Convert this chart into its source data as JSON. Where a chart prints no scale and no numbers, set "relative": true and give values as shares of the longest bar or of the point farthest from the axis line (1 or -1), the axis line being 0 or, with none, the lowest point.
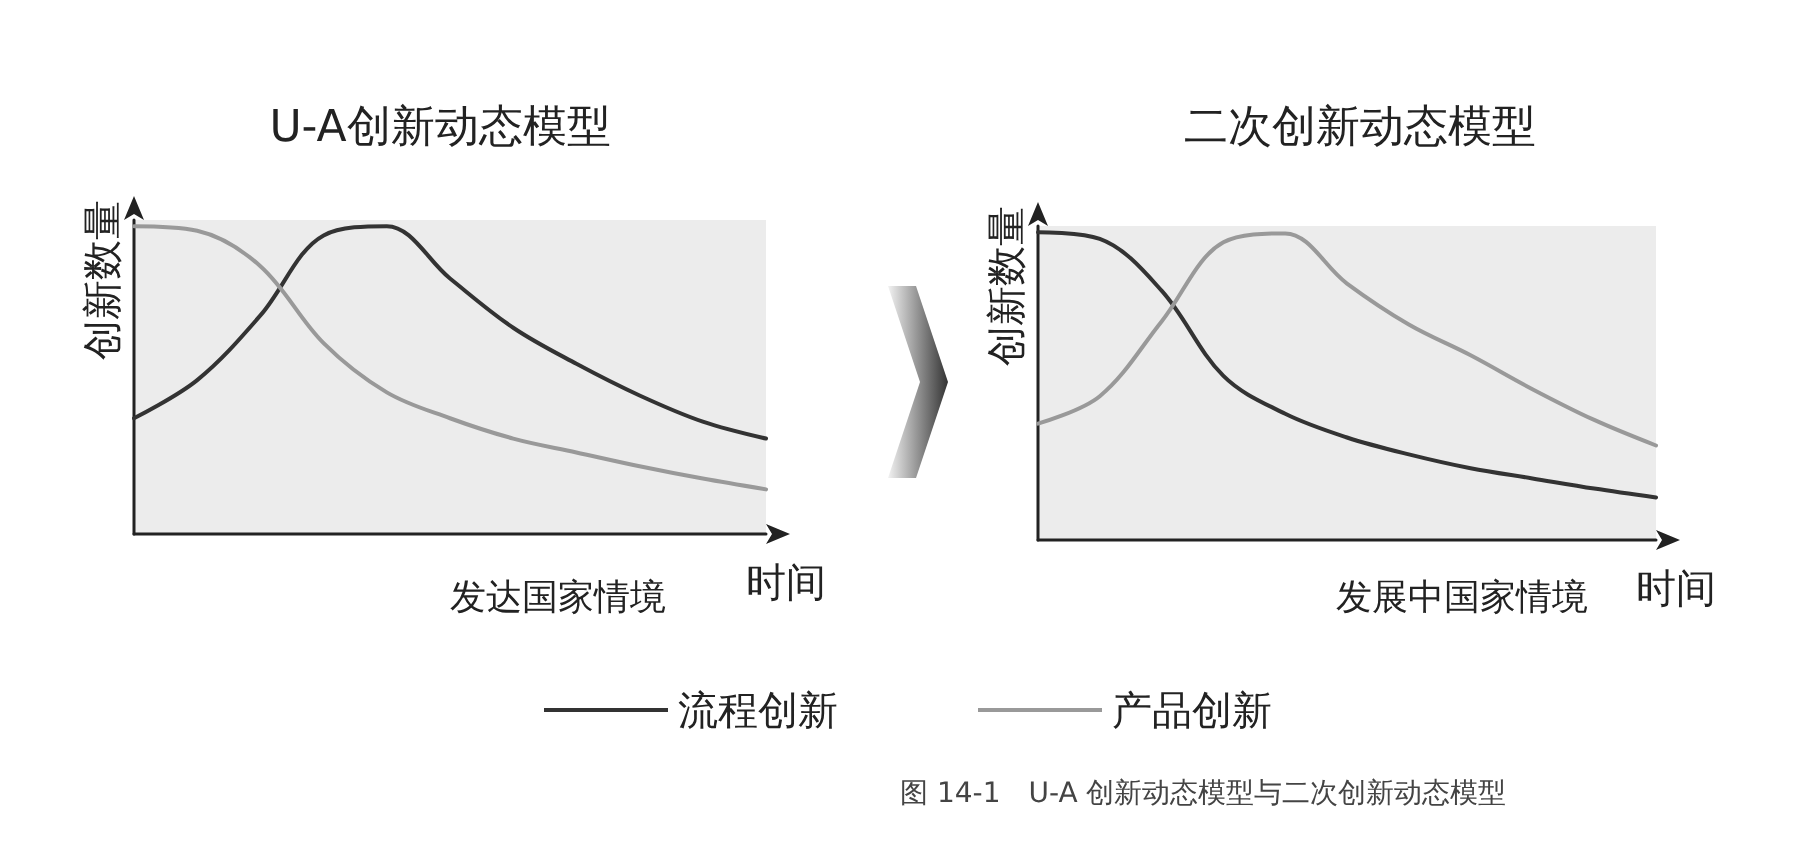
{
  "chart_data": [
    {
      "type": "line",
      "title": "U-A创新动态模型",
      "xlabel": "时间",
      "ylabel": "创新数量",
      "relative": true,
      "legend": "bottom",
      "grid": false,
      "categories": [
        null,
        null,
        null,
        null,
        null,
        null,
        null,
        null,
        null,
        null,
        null
      ],
      "series": [
        {
          "name": "流程创新",
          "color": "#333333",
          "values": [
            0.376,
            0.5,
            0.71,
            0.97,
            1.0,
            0.83,
            0.67,
            0.553,
            0.45,
            0.365,
            0.31
          ]
        },
        {
          "name": "产品创新",
          "color": "#999999",
          "values": [
            1.0,
            0.985,
            0.87,
            0.62,
            0.46,
            0.376,
            0.31,
            0.265,
            0.22,
            0.18,
            0.145
          ]
        }
      ],
      "annotations": [
        "发达国家情境",
        "图 14-1　U-A 创新动态模型与二次创新动态模型"
      ]
    },
    {
      "type": "line",
      "title": "二次创新动态模型",
      "xlabel": "时间",
      "ylabel": "创新数量",
      "relative": true,
      "legend": false,
      "grid": false,
      "categories": [
        null,
        null,
        null,
        null,
        null,
        null,
        null,
        null,
        null,
        null,
        null
      ],
      "series": [
        {
          "color": "#333333",
          "values": [
            1.0,
            0.978,
            0.81,
            0.533,
            0.41,
            0.333,
            0.278,
            0.233,
            0.2,
            0.167,
            0.138
          ]
        },
        {
          "color": "#999999",
          "values": [
            0.378,
            0.467,
            0.71,
            0.967,
            0.996,
            0.833,
            0.7,
            0.6,
            0.49,
            0.39,
            0.307
          ]
        }
      ],
      "annotations": [
        "发展中国家情境"
      ]
    }
  ]
}
